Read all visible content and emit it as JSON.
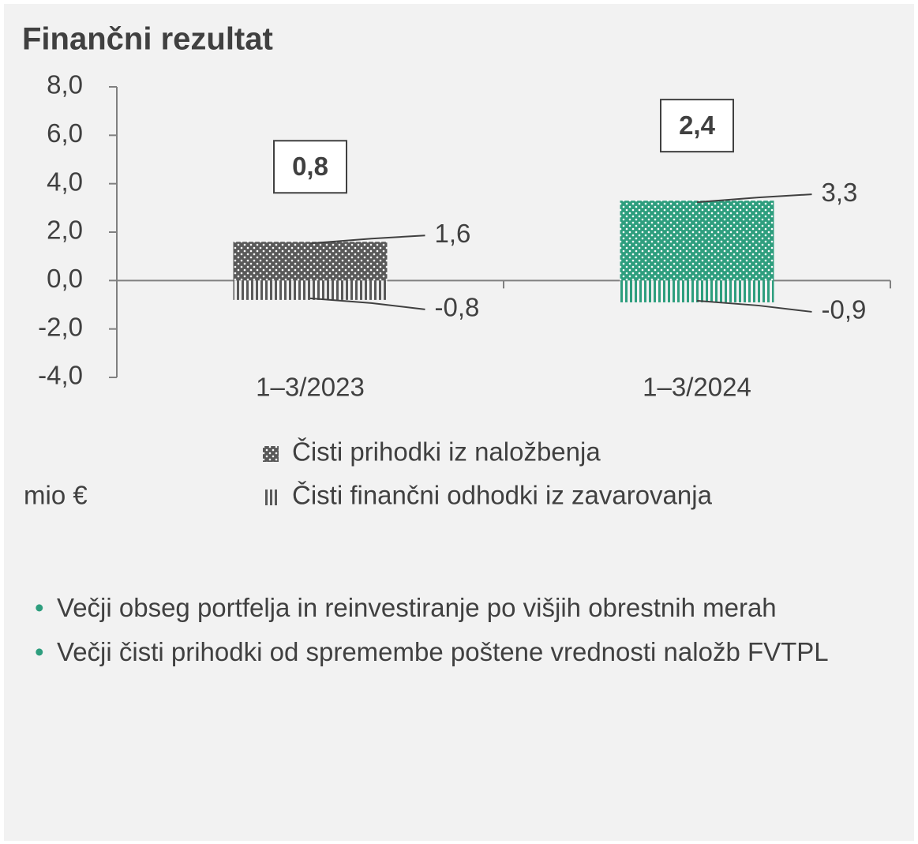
{
  "chart_data": {
    "type": "bar",
    "title": "Finančni rezultat",
    "categories": [
      "1–3/2023",
      "1–3/2024"
    ],
    "series": [
      {
        "name": "Čisti prihodki iz naložbenja",
        "colors": [
          "#595959",
          "#2e9e7e"
        ],
        "values": [
          1.6,
          3.3
        ],
        "value_labels": [
          "1,6",
          "3,3"
        ]
      },
      {
        "name": "Čisti finančni odhodki iz zavarovanja",
        "colors": [
          "#595959",
          "#2e9e7e"
        ],
        "values": [
          -0.8,
          -0.9
        ],
        "value_labels": [
          "-0,8",
          "-0,9"
        ]
      }
    ],
    "totals": [
      0.8,
      2.4
    ],
    "total_labels": [
      "0,8",
      "2,4"
    ],
    "unit": "mio €",
    "ylim": [
      -4,
      8
    ],
    "yticks": [
      {
        "value": -4,
        "label": "-4,0"
      },
      {
        "value": -2,
        "label": "-2,0"
      },
      {
        "value": 0,
        "label": "0,0"
      },
      {
        "value": 2,
        "label": "2,0"
      },
      {
        "value": 4,
        "label": "4,0"
      },
      {
        "value": 6,
        "label": "6,0"
      },
      {
        "value": 8,
        "label": "8,0"
      }
    ],
    "grid": false
  },
  "notes": [
    "Večji obseg portfelja in reinvestiranje po višjih obrestnih merah",
    "Večji čisti prihodki od spremembe poštene vrednosti naložb FVTPL"
  ]
}
